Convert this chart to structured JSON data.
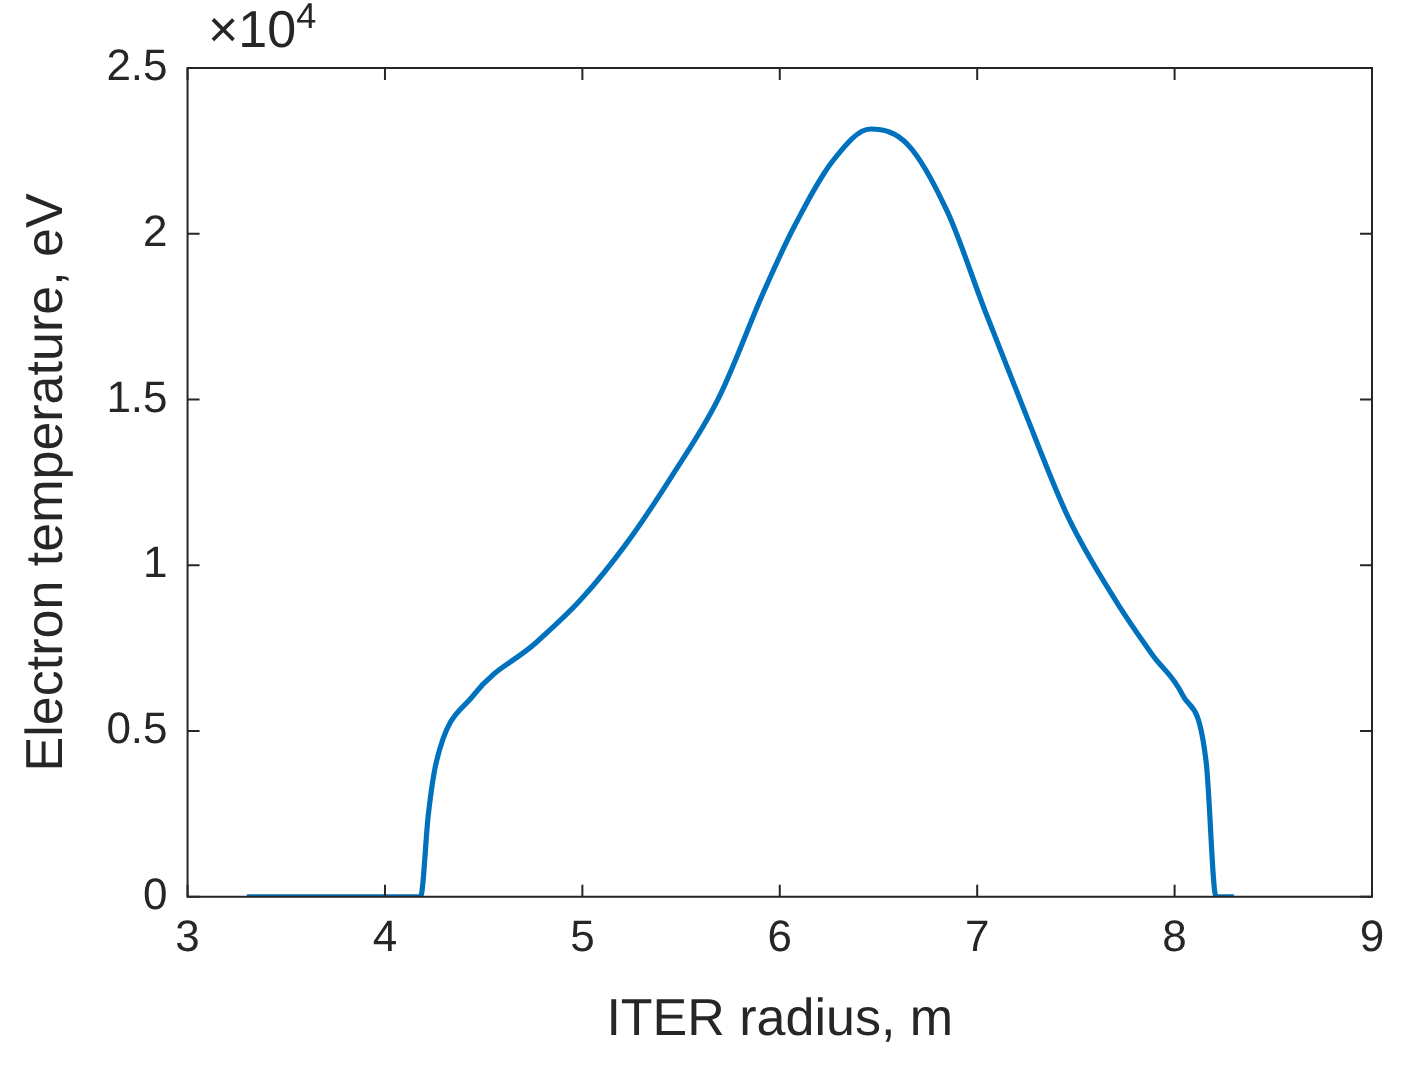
{
  "chart_data": {
    "type": "line",
    "xlabel": "ITER radius, m",
    "ylabel": "Electron temperature, eV",
    "x": [
      3.3,
      4.18,
      4.22,
      4.26,
      4.45,
      4.76,
      4.99,
      5.22,
      5.45,
      5.69,
      5.92,
      6.07,
      6.27,
      6.46,
      6.65,
      6.85,
      7.04,
      7.23,
      7.46,
      7.7,
      7.89,
      8.04,
      8.16,
      8.21,
      8.3
    ],
    "series": [
      {
        "color": "#0072bd",
        "values": [
          0,
          0,
          0.25,
          0.406,
          0.609,
          0.764,
          0.895,
          1.063,
          1.266,
          1.504,
          1.827,
          2.018,
          2.221,
          2.316,
          2.268,
          2.065,
          1.767,
          1.48,
          1.146,
          0.895,
          0.728,
          0.609,
          0.406,
          0,
          0
        ]
      }
    ],
    "xlim": [
      3,
      9
    ],
    "xticks": [
      3,
      4,
      5,
      6,
      7,
      8,
      9
    ],
    "ylim": [
      0,
      2.5
    ],
    "yticks": [
      0,
      0.5,
      1,
      1.5,
      2,
      2.5
    ],
    "annotations": [
      "×10$^{4}$"
    ],
    "grid": false,
    "legend": false,
    "marker": "none",
    "line_style": "solid"
  }
}
